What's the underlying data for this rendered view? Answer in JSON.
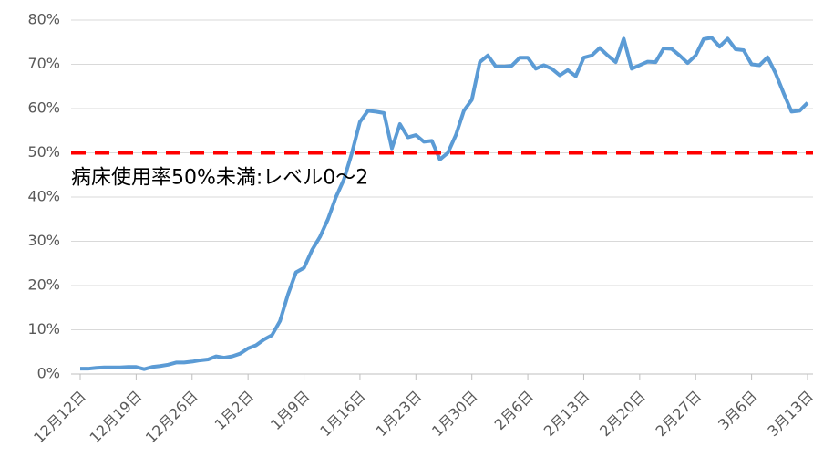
{
  "chart_data": {
    "type": "line",
    "categories": [
      "12月12日",
      null,
      null,
      null,
      null,
      null,
      null,
      "12月19日",
      null,
      null,
      null,
      null,
      null,
      null,
      "12月26日",
      null,
      null,
      null,
      null,
      null,
      null,
      "1月2日",
      null,
      null,
      null,
      null,
      null,
      null,
      "1月9日",
      null,
      null,
      null,
      null,
      null,
      null,
      "1月16日",
      null,
      null,
      null,
      null,
      null,
      null,
      "1月23日",
      null,
      null,
      null,
      null,
      null,
      null,
      "1月30日",
      null,
      null,
      null,
      null,
      null,
      null,
      "2月6日",
      null,
      null,
      null,
      null,
      null,
      null,
      "2月13日",
      null,
      null,
      null,
      null,
      null,
      null,
      "2月20日",
      null,
      null,
      null,
      null,
      null,
      null,
      "2月27日",
      null,
      null,
      null,
      null,
      null,
      null,
      "3月6日",
      null,
      null,
      null,
      null,
      null,
      null,
      "3月13日"
    ],
    "series": [
      {
        "color": "#5b9bd5",
        "values": [
          1.2,
          1.2,
          1.4,
          1.5,
          1.5,
          1.5,
          1.6,
          1.6,
          1.1,
          1.6,
          1.8,
          2.1,
          2.6,
          2.6,
          2.8,
          3.1,
          3.3,
          4.0,
          3.7,
          4.0,
          4.6,
          5.8,
          6.5,
          7.8,
          8.8,
          12,
          18,
          23,
          24,
          28,
          31,
          35,
          40,
          44,
          50,
          57,
          59.5,
          59.3,
          59,
          51,
          56.5,
          53.5,
          54,
          52.5,
          52.7,
          48.5,
          50,
          54,
          59.5,
          62,
          70.5,
          72,
          69.5,
          69.5,
          69.7,
          71.5,
          71.5,
          69,
          69.8,
          69,
          67.5,
          68.7,
          67.3,
          71.5,
          72,
          73.7,
          72,
          70.5,
          75.8,
          69,
          69.8,
          70.6,
          70.5,
          73.6,
          73.5,
          72,
          70.3,
          72,
          75.7,
          76,
          74,
          75.8,
          73.4,
          73.2,
          70,
          69.8,
          71.6,
          68,
          63.5,
          59.3,
          59.5,
          61.3
        ]
      }
    ],
    "ylim": [
      0,
      80
    ],
    "yticks": [
      {
        "value": 0,
        "label": "0%"
      },
      {
        "value": 10,
        "label": "10%"
      },
      {
        "value": 20,
        "label": "20%"
      },
      {
        "value": 30,
        "label": "30%"
      },
      {
        "value": 40,
        "label": "40%"
      },
      {
        "value": 50,
        "label": "50%"
      },
      {
        "value": 60,
        "label": "60%"
      },
      {
        "value": 70,
        "label": "70%"
      },
      {
        "value": 80,
        "label": "80%"
      }
    ],
    "grid": true,
    "reference_line": {
      "value": 50,
      "color": "#ff0000",
      "label": "病床使用率50%未満:レベル0～2"
    }
  }
}
